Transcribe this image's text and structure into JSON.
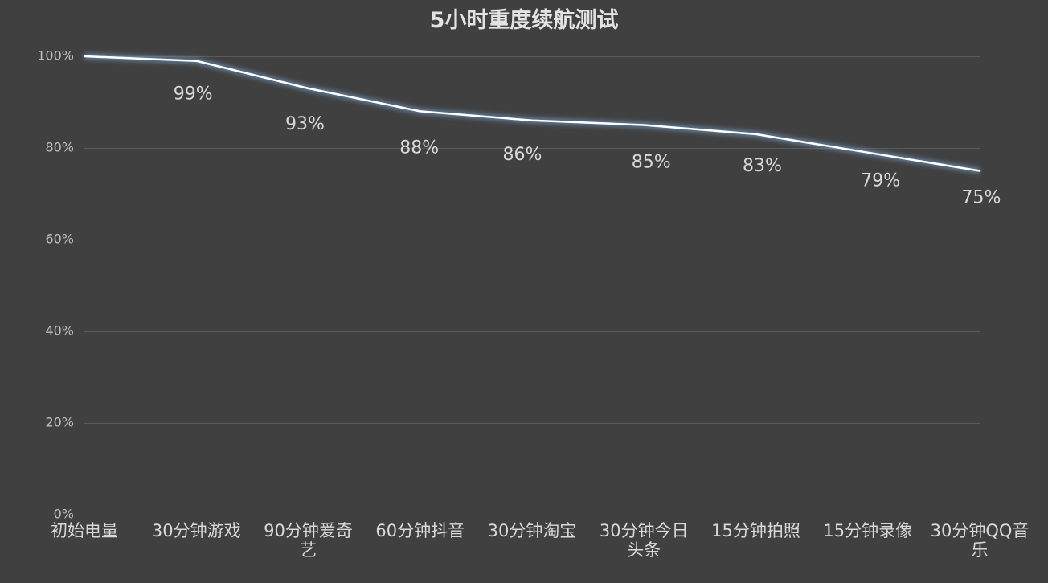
{
  "chart_data": {
    "type": "line",
    "title": "5小时重度续航测试",
    "categories": [
      "初始电量",
      "30分钟游戏",
      "90分钟爱奇艺",
      "60分钟抖音",
      "30分钟淘宝",
      "30分钟今日头条",
      "15分钟拍照",
      "15分钟录像",
      "30分钟QQ音乐"
    ],
    "series": [
      {
        "values": [
          100,
          99,
          93,
          88,
          86,
          85,
          83,
          79,
          75
        ]
      }
    ],
    "data_labels": [
      null,
      "99%",
      "93%",
      "88%",
      "86%",
      "85%",
      "83%",
      "79%",
      "75%"
    ],
    "yticks": [
      0,
      20,
      40,
      60,
      80,
      100
    ],
    "ytick_labels": [
      "0%",
      "20%",
      "40%",
      "60%",
      "80%",
      "100%"
    ],
    "ylim": [
      0,
      100
    ],
    "xlabel": "",
    "ylabel": "",
    "grid": true,
    "legend": "none",
    "colors": {
      "background": "#404040",
      "line": "#ffffff",
      "line_glow": "#7fb2e5",
      "grid": "#5a5a5a",
      "title": "#e3e3e3",
      "category_text": "#d9d9d9",
      "data_label_text": "#d9d9d9",
      "tick_text": "#bfbfbf"
    }
  }
}
